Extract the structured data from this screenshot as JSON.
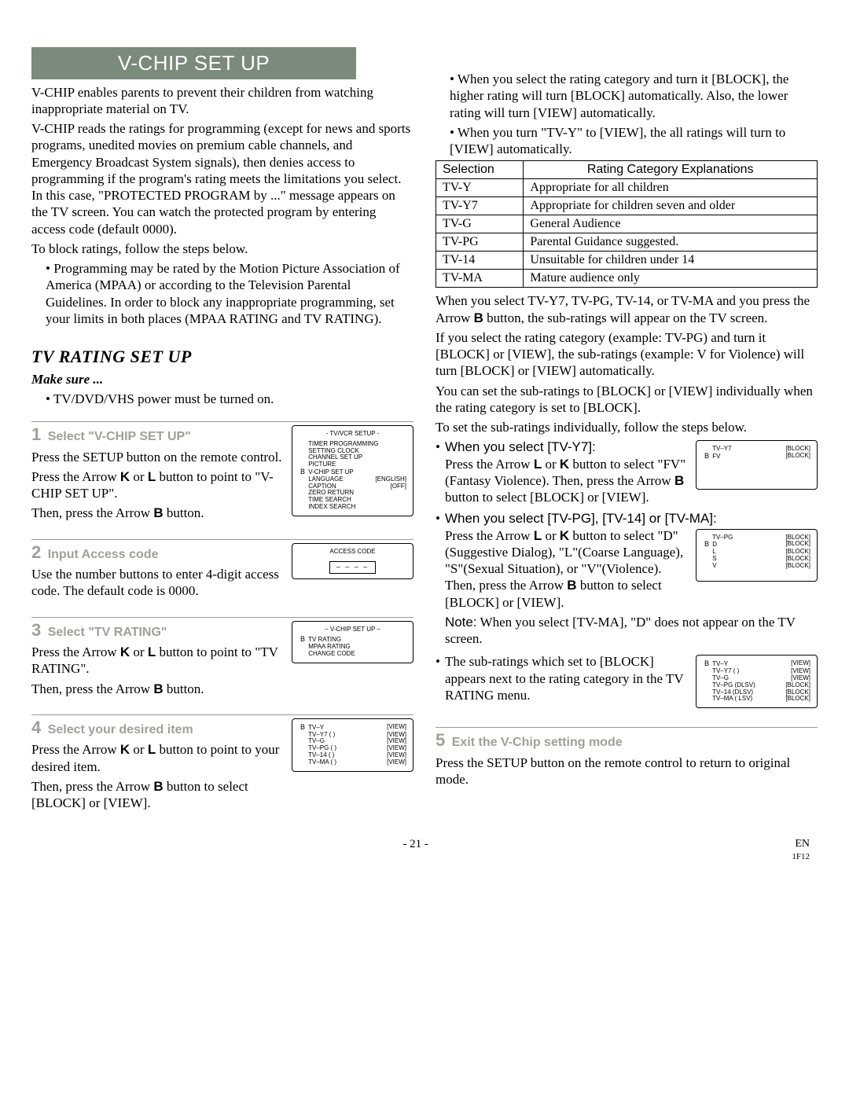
{
  "banner": "V-CHIP SET UP",
  "intro_p1": "V-CHIP enables parents to prevent their children from watching inappropriate material on TV.",
  "intro_p2": "V-CHIP reads the ratings for programming (except for news and sports programs, unedited movies on premium cable channels, and Emergency Broadcast System signals), then denies access to programming if the program's rating meets the limitations you select. In this case, \"PROTECTED PROGRAM by ...\" message appears on the TV screen. You can watch the protected program by entering access code (default 0000).",
  "intro_p3": "To block ratings, follow the steps below.",
  "intro_bullet": "Programming may be rated by the Motion Picture Association of America (MPAA) or according to the Television Parental Guidelines. In order to block any inappropriate programming, set your limits in both places (MPAA RATING and TV RATING).",
  "tv_rating_heading": "TV RATING SET UP",
  "make_sure_label": "Make sure ...",
  "make_sure_item": "TV/DVD/VHS power must be turned on.",
  "step1": {
    "title_num": "1",
    "title": "Select \"V-CHIP SET UP\"",
    "body1": "Press the SETUP button on the remote control.",
    "body2_pre": "Press the Arrow ",
    "body2_mid": " or ",
    "body2_post": " button to point to \"V-CHIP SET UP\".",
    "body3_pre": "Then, press the Arrow ",
    "body3_post": " button.",
    "screen_title": "- TV/VCR SETUP -",
    "screen_items": [
      {
        "ptr": "",
        "lbl": "TIMER PROGRAMMING",
        "val": ""
      },
      {
        "ptr": "",
        "lbl": "SETTING CLOCK",
        "val": ""
      },
      {
        "ptr": "",
        "lbl": "CHANNEL SET UP",
        "val": ""
      },
      {
        "ptr": "",
        "lbl": "PICTURE",
        "val": ""
      },
      {
        "ptr": "B",
        "lbl": "V-CHIP SET UP",
        "val": ""
      },
      {
        "ptr": "",
        "lbl": "LANGUAGE",
        "val": "[ENGLISH]"
      },
      {
        "ptr": "",
        "lbl": "CAPTION",
        "val": "[OFF]"
      },
      {
        "ptr": "",
        "lbl": "ZERO RETURN",
        "val": ""
      },
      {
        "ptr": "",
        "lbl": "TIME SEARCH",
        "val": ""
      },
      {
        "ptr": "",
        "lbl": "INDEX SEARCH",
        "val": ""
      }
    ]
  },
  "step2": {
    "title_num": "2",
    "title": "Input Access code",
    "body": "Use the number buttons to enter 4-digit access code. The default code is 0000.",
    "screen_title": "ACCESS CODE",
    "code_placeholder": "– – – –"
  },
  "step3": {
    "title_num": "3",
    "title": "Select \"TV RATING\"",
    "body1_pre": "Press the Arrow ",
    "body1_mid": " or ",
    "body1_post": " button to point to \"TV RATING\".",
    "body2_pre": "Then, press the Arrow ",
    "body2_post": " button.",
    "screen_title": "– V-CHIP SET UP –",
    "screen_items": [
      {
        "ptr": "B",
        "lbl": "TV RATING",
        "val": ""
      },
      {
        "ptr": "",
        "lbl": "MPAA RATING",
        "val": ""
      },
      {
        "ptr": "",
        "lbl": "CHANGE CODE",
        "val": ""
      }
    ]
  },
  "step4": {
    "title_num": "4",
    "title": "Select your desired item",
    "body1_pre": "Press the Arrow ",
    "body1_mid": " or ",
    "body1_post": " button to point to your desired item.",
    "body2_pre": "Then, press the Arrow ",
    "body2_post": " button to select [BLOCK] or [VIEW].",
    "screen_items": [
      {
        "ptr": "B",
        "lbl": "TV–Y",
        "sub": "",
        "val": "[VIEW]"
      },
      {
        "ptr": "",
        "lbl": "TV–Y7",
        "sub": "(       )",
        "val": "[VIEW]"
      },
      {
        "ptr": "",
        "lbl": "TV–G",
        "sub": "",
        "val": "[VIEW]"
      },
      {
        "ptr": "",
        "lbl": "TV–PG",
        "sub": "(       )",
        "val": "[VIEW]"
      },
      {
        "ptr": "",
        "lbl": "TV–14",
        "sub": "(       )",
        "val": "[VIEW]"
      },
      {
        "ptr": "",
        "lbl": "TV–MA",
        "sub": "(       )",
        "val": "[VIEW]"
      }
    ]
  },
  "right_bullets": [
    "When you select the rating category and turn it [BLOCK], the higher rating will turn [BLOCK] automatically. Also, the lower rating will turn [VIEW] automatically.",
    "When you turn \"TV-Y\" to [VIEW], the all ratings will turn to [VIEW] automatically."
  ],
  "ratings_table": {
    "headers": [
      "Selection",
      "Rating Category Explanations"
    ],
    "rows": [
      [
        "TV-Y",
        "Appropriate for all children"
      ],
      [
        "TV-Y7",
        "Appropriate for children seven and older"
      ],
      [
        "TV-G",
        "General Audience"
      ],
      [
        "TV-PG",
        "Parental Guidance suggested."
      ],
      [
        "TV-14",
        "Unsuitable for children under 14"
      ],
      [
        "TV-MA",
        "Mature audience only"
      ]
    ]
  },
  "right_p1": "When you select TV-Y7, TV-PG, TV-14, or TV-MA and you press the Arrow ",
  "right_p1_post": " button, the sub-ratings will appear on the TV screen.",
  "right_p2": "If you select the rating category (example: TV-PG) and turn it [BLOCK] or [VIEW], the sub-ratings (example: V for Violence) will turn [BLOCK] or [VIEW] automatically.",
  "right_p3": "You can set the sub-ratings to [BLOCK] or [VIEW] individually when the rating category is set to [BLOCK].",
  "right_p4": "To set the sub-ratings individually, follow the steps below.",
  "sub_y7": {
    "heading": "When you select [TV-Y7]:",
    "body_pre": "Press the Arrow ",
    "body_mid": " or ",
    "body_post": " button to select \"FV\" (Fantasy Violence). Then, press the Arrow ",
    "body_post2": " button to select [BLOCK] or [VIEW].",
    "screen": [
      {
        "ptr": "",
        "lbl": "TV–Y7",
        "val": "[BLOCK]"
      },
      {
        "ptr": "B",
        "lbl": "FV",
        "val": "[BLOCK]"
      }
    ]
  },
  "sub_pg": {
    "heading": "When you select [TV-PG], [TV-14] or [TV-MA]:",
    "body_pre": "Press the Arrow ",
    "body_mid": " or ",
    "body_post": " button to select \"D\"(Suggestive Dialog), \"L\"(Coarse Language), \"S\"(Sexual Situation), or \"V\"(Violence). Then, press the Arrow ",
    "body_post2": " button to select [BLOCK] or [VIEW].",
    "screen": [
      {
        "ptr": "",
        "lbl": "TV–PG",
        "val": "[BLOCK]"
      },
      {
        "ptr": "B",
        "lbl": "D",
        "val": "[BLOCK]"
      },
      {
        "ptr": "",
        "lbl": "L",
        "val": "[BLOCK]"
      },
      {
        "ptr": "",
        "lbl": "S",
        "val": "[BLOCK]"
      },
      {
        "ptr": "",
        "lbl": "V",
        "val": "[BLOCK]"
      }
    ],
    "note_label": "Note:",
    "note": "When you select [TV-MA], \"D\" does not appear on the TV screen."
  },
  "sub_summary": {
    "body": "The sub-ratings which set to [BLOCK] appears next to the rating category in the TV RATING menu.",
    "screen": [
      {
        "ptr": "B",
        "lbl": "TV–Y",
        "sub": "",
        "val": "[VIEW]"
      },
      {
        "ptr": "",
        "lbl": "TV–Y7",
        "sub": "(       )",
        "val": "[VIEW]"
      },
      {
        "ptr": "",
        "lbl": "TV–G",
        "sub": "",
        "val": "[VIEW]"
      },
      {
        "ptr": "",
        "lbl": "TV–PG",
        "sub": "(DLSV)",
        "val": "[BLOCK]"
      },
      {
        "ptr": "",
        "lbl": "TV–14",
        "sub": "(DLSV)",
        "val": "[BLOCK]"
      },
      {
        "ptr": "",
        "lbl": "TV–MA",
        "sub": "( LSV)",
        "val": "[BLOCK]"
      }
    ]
  },
  "step5": {
    "title_num": "5",
    "title": "Exit the V-Chip setting mode",
    "body": "Press the SETUP button on the remote control to return to original mode."
  },
  "arrows": {
    "K": "K",
    "L": "L",
    "B": "B"
  },
  "footer": {
    "page": "- 21 -",
    "lang": "EN",
    "code": "1F12"
  }
}
